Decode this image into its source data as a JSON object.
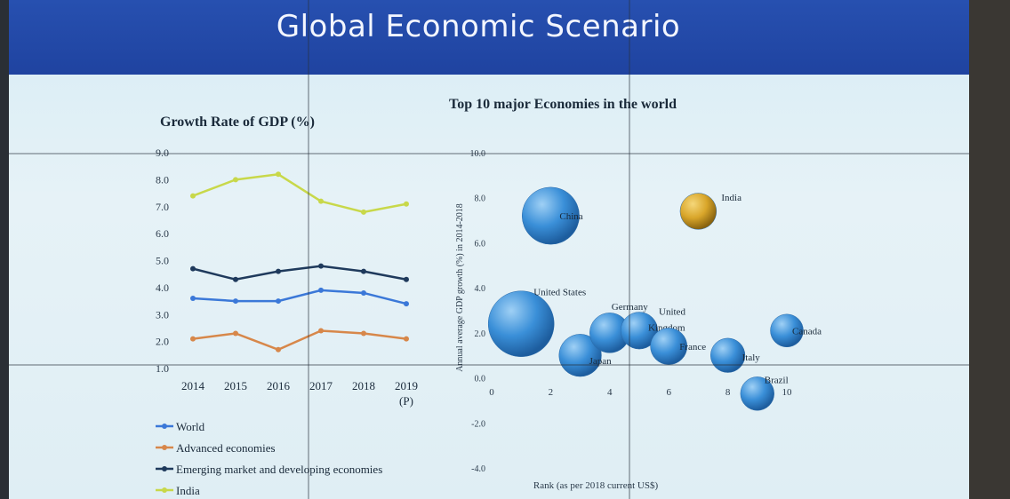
{
  "slide": {
    "title": "Global Economic Scenario"
  },
  "chart_data": [
    {
      "type": "line",
      "title": "Growth Rate of GDP (%)",
      "categories": [
        "2014",
        "2015",
        "2016",
        "2017",
        "2018",
        "2019 (P)"
      ],
      "category_lines": [
        [
          "2014"
        ],
        [
          "2015"
        ],
        [
          "2016"
        ],
        [
          "2017"
        ],
        [
          "2018"
        ],
        [
          "2019",
          "(P)"
        ]
      ],
      "yticks": [
        "9.0",
        "8.0",
        "7.0",
        "6.0",
        "5.0",
        "4.0",
        "3.0",
        "2.0",
        "1.0"
      ],
      "ylim": [
        1,
        9
      ],
      "legend_position": "bottom",
      "series": [
        {
          "name": "World",
          "color": "#3b78d8",
          "values": [
            3.6,
            3.5,
            3.5,
            3.9,
            3.8,
            3.4
          ]
        },
        {
          "name": "Advanced economies",
          "color": "#d7874a",
          "values": [
            2.1,
            2.3,
            1.7,
            2.4,
            2.3,
            2.1
          ]
        },
        {
          "name": "Emerging market and developing economies",
          "color": "#1f3a5c",
          "values": [
            4.7,
            4.3,
            4.6,
            4.8,
            4.6,
            4.3
          ]
        },
        {
          "name": "India",
          "color": "#c8d84a",
          "values": [
            7.4,
            8.0,
            8.2,
            7.2,
            6.8,
            7.1
          ]
        }
      ]
    },
    {
      "type": "bubble",
      "title": "Top 10 major Economies in the world",
      "xlabel": "Rank (as per 2018 current US$)",
      "ylabel": "Annual average GDP growth (%) in 2014-2018",
      "xticks": [
        "0",
        "2",
        "4",
        "6",
        "8",
        "10"
      ],
      "yticks": [
        "10.0",
        "8.0",
        "6.0",
        "4.0",
        "2.0",
        "0.0",
        "-2.0",
        "-4.0"
      ],
      "xlim": [
        0,
        10
      ],
      "ylim": [
        -4,
        10
      ],
      "points": [
        {
          "label": "United States",
          "x": 1,
          "y": 2.4,
          "size": 20.5,
          "color": "#3a8fd8"
        },
        {
          "label": "China",
          "x": 2,
          "y": 7.2,
          "size": 13.6,
          "color": "#3a8fd8"
        },
        {
          "label": "Japan",
          "x": 3,
          "y": 1.0,
          "size": 5.0,
          "color": "#3a8fd8"
        },
        {
          "label": "Germany",
          "x": 4,
          "y": 2.0,
          "size": 4.0,
          "color": "#3a8fd8"
        },
        {
          "label": "United Kingdom",
          "x": 5,
          "y": 2.1,
          "size": 2.9,
          "color": "#3a8fd8"
        },
        {
          "label": "France",
          "x": 6,
          "y": 1.4,
          "size": 2.8,
          "color": "#3a8fd8"
        },
        {
          "label": "India",
          "x": 7,
          "y": 7.4,
          "size": 2.7,
          "color": "#d9a62a"
        },
        {
          "label": "Italy",
          "x": 8,
          "y": 1.0,
          "size": 2.1,
          "color": "#3a8fd8"
        },
        {
          "label": "Brazil",
          "x": 9,
          "y": -0.7,
          "size": 1.9,
          "color": "#3a8fd8"
        },
        {
          "label": "Canada",
          "x": 10,
          "y": 2.1,
          "size": 1.7,
          "color": "#3a8fd8"
        }
      ]
    }
  ]
}
